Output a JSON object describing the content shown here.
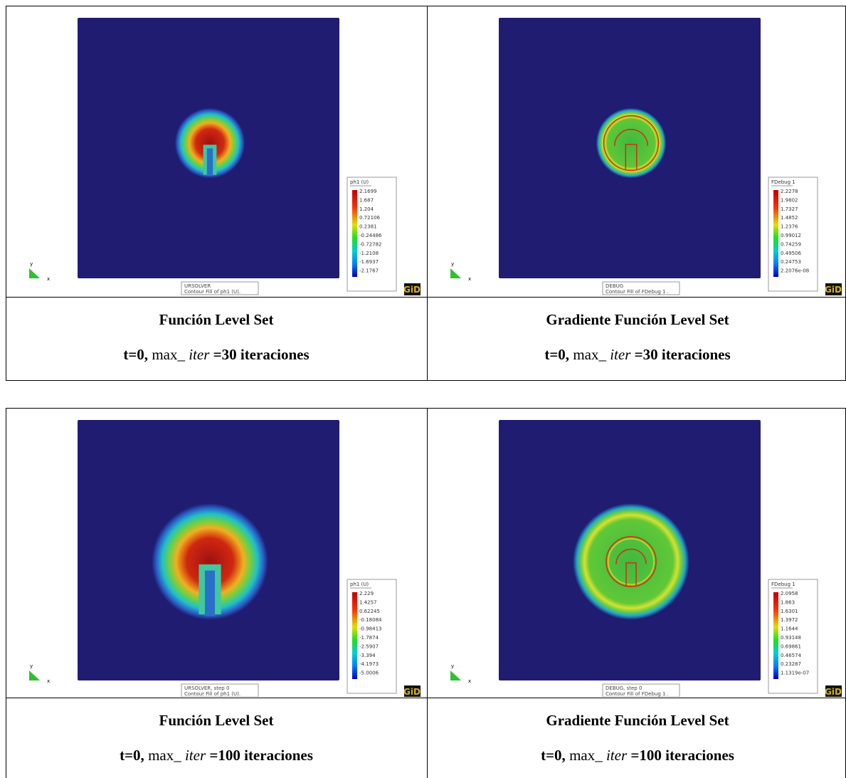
{
  "figures": [
    {
      "panels": [
        {
          "legend": {
            "title": "ph1 (U)",
            "values": [
              "2.1699",
              "1.687",
              "1.204",
              "0.72106",
              "0.2381",
              "-0.24486",
              "-0.72782",
              "-1.2108",
              "-1.6937",
              "-2.1767"
            ]
          },
          "footer": [
            "URSOLVER",
            "Contour Fill of ph1 (U)."
          ],
          "axes": [
            "y",
            "x"
          ],
          "logo": "GiD",
          "caption": {
            "title": "Función Level Set",
            "time": "t=0,",
            "max": "max_",
            "iter": "iter",
            "count": "=30 iteraciones"
          }
        },
        {
          "legend": {
            "title": "FDebug 1",
            "values": [
              "2.2278",
              "1.9802",
              "1.7327",
              "1.4852",
              "1.2376",
              "0.99012",
              "0.74259",
              "0.49506",
              "0.24753",
              "2.2076e-08"
            ]
          },
          "footer": [
            "DEBUG",
            "Contour Fill of FDebug 1 ."
          ],
          "axes": [
            "y",
            "x"
          ],
          "logo": "GiD",
          "caption": {
            "title": "Gradiente Función Level Set",
            "time": "t=0,",
            "max": "max_",
            "iter": "iter",
            "count": "=30 iteraciones"
          }
        }
      ]
    },
    {
      "panels": [
        {
          "legend": {
            "title": "ph1 (U)",
            "values": [
              "2.229",
              "1.4257",
              "0.62245",
              "-0.18084",
              "-0.98413",
              "-1.7874",
              "-2.5907",
              "-3.394",
              "-4.1973",
              "-5.0006"
            ]
          },
          "footer": [
            "URSOLVER, step 0",
            "Contour Fill of ph1 (U)."
          ],
          "axes": [
            "y",
            "x"
          ],
          "logo": "GiD",
          "caption": {
            "title": "Función Level Set",
            "time": "t=0,",
            "max": "max_",
            "iter": "iter",
            "count": "=100 iteraciones"
          }
        },
        {
          "legend": {
            "title": "FDebug 1",
            "values": [
              "2.0958",
              "1.863",
              "1.6301",
              "1.3972",
              "1.1644",
              "0.93148",
              "0.69861",
              "0.46574",
              "0.23287",
              "1.1319e-07"
            ]
          },
          "footer": [
            "DEBUG, step 0",
            "Contour Fill of FDebug 1 ."
          ],
          "axes": [
            "y",
            "x"
          ],
          "logo": "GiD",
          "caption": {
            "title": "Gradiente Función Level Set",
            "time": "t=0,",
            "max": "max_",
            "iter": "iter",
            "count": "=100 iteraciones"
          }
        }
      ]
    }
  ]
}
